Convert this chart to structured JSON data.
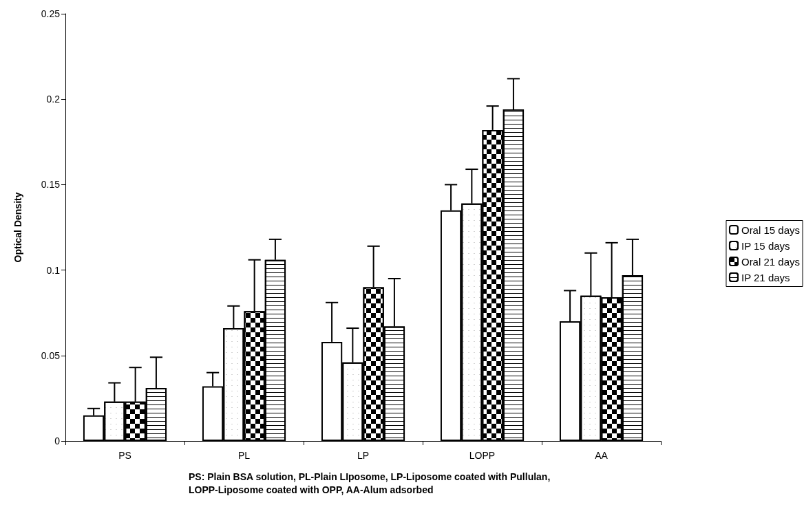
{
  "chart_data": {
    "type": "bar",
    "ylabel": "Optical Density",
    "categories": [
      "PS",
      "PL",
      "LP",
      "LOPP",
      "AA"
    ],
    "series": [
      {
        "name": "Oral 15 days",
        "color": "#ffffff",
        "values": [
          0.015,
          0.032,
          0.058,
          0.135,
          0.07
        ],
        "errors": [
          [
            0.015,
            0.019
          ],
          [
            0.032,
            0.04
          ],
          [
            0.058,
            0.081
          ],
          [
            0.135,
            0.15
          ],
          [
            0.07,
            0.088
          ]
        ]
      },
      {
        "name": "IP 15 days",
        "color": "#ffffff",
        "values": [
          0.023,
          0.066,
          0.046,
          0.139,
          0.085
        ],
        "errors": [
          [
            0.023,
            0.034
          ],
          [
            0.066,
            0.079
          ],
          [
            0.046,
            0.066
          ],
          [
            0.139,
            0.159
          ],
          [
            0.085,
            0.11
          ]
        ]
      },
      {
        "name": "Oral 21 days",
        "color": "#000000",
        "values": [
          0.023,
          0.076,
          0.09,
          0.182,
          0.084
        ],
        "errors": [
          [
            0.023,
            0.043
          ],
          [
            0.076,
            0.106
          ],
          [
            0.09,
            0.114
          ],
          [
            0.182,
            0.196
          ],
          [
            0.084,
            0.116
          ]
        ]
      },
      {
        "name": "IP 21 days",
        "color": "#ffffff",
        "values": [
          0.031,
          0.106,
          0.067,
          0.194,
          0.097
        ],
        "errors": [
          [
            0.031,
            0.049
          ],
          [
            0.106,
            0.118
          ],
          [
            0.067,
            0.095
          ],
          [
            0.194,
            0.212
          ],
          [
            0.097,
            0.118
          ]
        ]
      }
    ],
    "ylim": [
      0,
      0.25
    ],
    "yticks": [
      0,
      0.05,
      0.1,
      0.15,
      0.2,
      0.25
    ],
    "grid": false,
    "legend": "right",
    "annotations": [
      "PS: Plain BSA solution, PL-Plain LIposome, LP-Liposome coated with Pullulan, LOPP-Liposome coated with OPP, AA-Alum adsorbed"
    ]
  }
}
